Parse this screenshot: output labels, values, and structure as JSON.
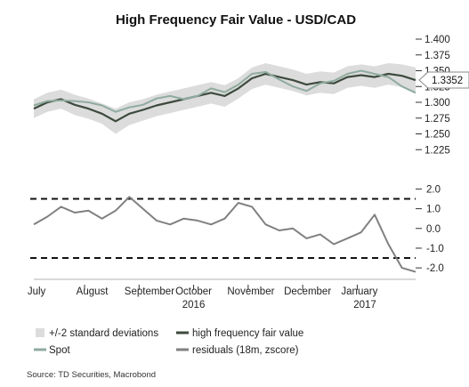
{
  "chart_data": {
    "type": "line",
    "title": "High Frequency Fair Value - USD/CAD",
    "source": "Source: TD Securities, Macrobond",
    "x_tick_labels": [
      "July",
      "August",
      "September",
      "October",
      "November",
      "December",
      "January"
    ],
    "x_year_labels": [
      "2016",
      "2017"
    ],
    "x_range": [
      0,
      7
    ],
    "top_panel": {
      "ylim": [
        1.2,
        1.4
      ],
      "y_ticks": [
        1.4,
        1.375,
        1.35,
        1.325,
        1.3,
        1.275,
        1.25,
        1.225
      ],
      "y_tick_labels": [
        "1.400",
        "1.375",
        "1.350",
        "1.325",
        "1.300",
        "1.275",
        "1.250",
        "1.225"
      ],
      "last_value_label": "1.3352",
      "last_value": 1.3352,
      "x": [
        0.0,
        0.25,
        0.5,
        0.75,
        1.0,
        1.25,
        1.5,
        1.75,
        2.0,
        2.25,
        2.5,
        2.75,
        3.0,
        3.25,
        3.5,
        3.75,
        4.0,
        4.25,
        4.5,
        4.75,
        5.0,
        5.25,
        5.5,
        5.75,
        6.0,
        6.25,
        6.5,
        6.75,
        7.0
      ],
      "series": [
        {
          "name": "high frequency fair value",
          "color": "#3d4a3d",
          "values": [
            1.29,
            1.3,
            1.305,
            1.296,
            1.29,
            1.282,
            1.27,
            1.282,
            1.288,
            1.295,
            1.3,
            1.305,
            1.31,
            1.315,
            1.31,
            1.322,
            1.338,
            1.345,
            1.34,
            1.335,
            1.328,
            1.332,
            1.33,
            1.34,
            1.343,
            1.34,
            1.345,
            1.342,
            1.335
          ]
        },
        {
          "name": "Spot",
          "color": "#8fab9f",
          "values": [
            1.295,
            1.302,
            1.303,
            1.302,
            1.3,
            1.295,
            1.285,
            1.292,
            1.296,
            1.306,
            1.31,
            1.305,
            1.31,
            1.322,
            1.316,
            1.328,
            1.345,
            1.348,
            1.336,
            1.325,
            1.318,
            1.33,
            1.334,
            1.345,
            1.35,
            1.345,
            1.34,
            1.325,
            1.315
          ]
        }
      ],
      "band": {
        "name": "+/-2 standard deviations",
        "color": "#dcdcdc",
        "upper": [
          1.305,
          1.315,
          1.32,
          1.312,
          1.306,
          1.298,
          1.29,
          1.3,
          1.305,
          1.312,
          1.317,
          1.322,
          1.327,
          1.332,
          1.327,
          1.338,
          1.355,
          1.362,
          1.357,
          1.352,
          1.345,
          1.349,
          1.347,
          1.357,
          1.36,
          1.357,
          1.362,
          1.36,
          1.355
        ],
        "lower": [
          1.275,
          1.285,
          1.29,
          1.28,
          1.274,
          1.266,
          1.25,
          1.264,
          1.271,
          1.278,
          1.283,
          1.288,
          1.293,
          1.298,
          1.293,
          1.306,
          1.321,
          1.328,
          1.323,
          1.318,
          1.311,
          1.315,
          1.313,
          1.323,
          1.326,
          1.323,
          1.328,
          1.324,
          1.315
        ]
      }
    },
    "bottom_panel": {
      "ylim": [
        -2.4,
        2.2
      ],
      "y_ticks": [
        2.0,
        1.0,
        0.0,
        -1.0,
        -2.0
      ],
      "y_tick_labels": [
        "2.0",
        "1.0",
        "0.0",
        "-1.0",
        "-2.0"
      ],
      "threshold_lines": [
        1.5,
        -1.5
      ],
      "x": [
        0.0,
        0.25,
        0.5,
        0.75,
        1.0,
        1.25,
        1.5,
        1.75,
        2.0,
        2.25,
        2.5,
        2.75,
        3.0,
        3.25,
        3.5,
        3.75,
        4.0,
        4.25,
        4.5,
        4.75,
        5.0,
        5.25,
        5.5,
        5.75,
        6.0,
        6.25,
        6.5,
        6.75,
        7.0
      ],
      "series": [
        {
          "name": "residuals (18m, zscore)",
          "color": "#808080",
          "values": [
            0.2,
            0.6,
            1.1,
            0.8,
            0.9,
            0.5,
            0.9,
            1.6,
            1.0,
            0.4,
            0.2,
            0.5,
            0.4,
            0.2,
            0.5,
            1.3,
            1.1,
            0.2,
            -0.1,
            0.0,
            -0.5,
            -0.3,
            -0.8,
            -0.5,
            -0.2,
            0.7,
            -0.8,
            -2.0,
            -2.2
          ]
        }
      ]
    },
    "legend": [
      {
        "label": "+/-2 standard deviations",
        "style": "band",
        "color": "#dcdcdc"
      },
      {
        "label": "high frequency fair value",
        "style": "line",
        "color": "#3d4a3d"
      },
      {
        "label": "Spot",
        "style": "line",
        "color": "#8fab9f"
      },
      {
        "label": "residuals (18m, zscore)",
        "style": "line",
        "color": "#808080"
      }
    ]
  }
}
